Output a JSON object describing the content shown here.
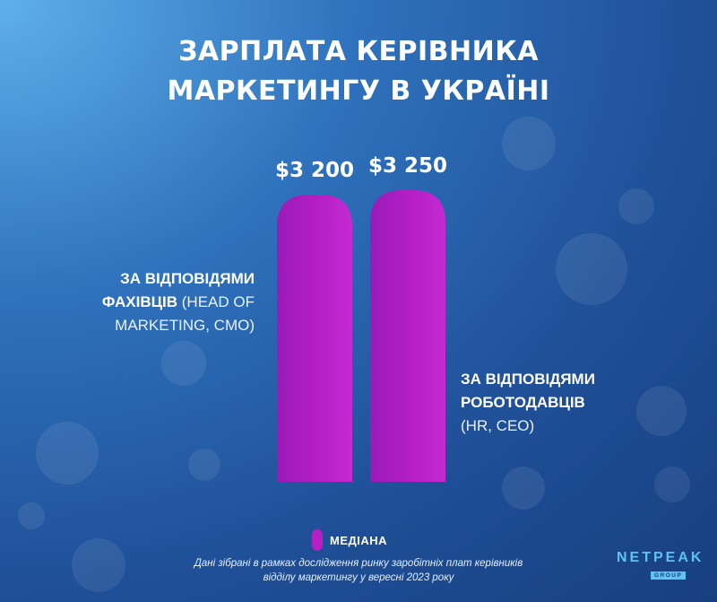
{
  "title": {
    "line1": "ЗАРПЛАТА КЕРІВНИКА",
    "line2": "МАРКЕТИНГУ В УКРАЇНІ"
  },
  "chart_data": {
    "type": "bar",
    "title": "ЗАРПЛАТА КЕРІВНИКА МАРКЕТИНГУ В УКРАЇНІ",
    "categories": [
      "ЗА ВІДПОВІДЯМИ ФАХІВЦІВ (HEAD OF MARKETING, CMO)",
      "ЗА ВІДПОВІДЯМИ РОБОТОДАВЦІВ (HR, CEO)"
    ],
    "series": [
      {
        "name": "МЕДІАНА",
        "values": [
          3200,
          3250
        ],
        "data_labels": [
          "$3 200",
          "$3 250"
        ]
      }
    ],
    "bar_color": "#b51fc4",
    "ylim": [
      0,
      3250
    ],
    "grid": false,
    "legend_position": "bottom-center"
  },
  "labels": {
    "left": {
      "bold1": "ЗА ВІДПОВІДЯМИ",
      "bold2": "ФАХІВЦІВ",
      "light2": " (HEAD OF",
      "light3": "MARKETING, CMO)"
    },
    "right": {
      "bold1": "ЗА ВІДПОВІДЯМИ",
      "bold2": "РОБОТОДАВЦІВ",
      "light3": "(HR, CEO)"
    }
  },
  "legend": {
    "label": "МЕДІАНА"
  },
  "note": {
    "line1": "Дані зібрані в рамках дослідження ринку заробітніх плат керівників",
    "line2": "відділу маркетингу у вересні 2023 року"
  },
  "logo": {
    "main": "NETPEAK",
    "sub": "GROUP"
  }
}
